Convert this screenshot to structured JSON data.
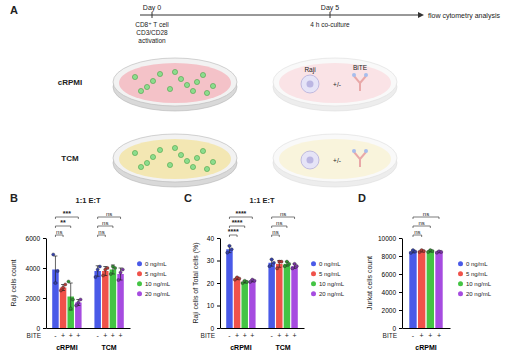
{
  "panel_a": {
    "letter": "A",
    "timeline": [
      "Day 0",
      "Day 5",
      "flow cytometry analysis"
    ],
    "day0_note": [
      "CD8⁺ T cell",
      "CD3/CD28",
      "activation"
    ],
    "day5_note": "4 h co-culture",
    "media": [
      "cRPMI",
      "TCM"
    ],
    "target": "Raji",
    "engager": "BiTE",
    "plus_minus": "+/-"
  },
  "chart_data": [
    {
      "panel": "B",
      "type": "bar",
      "title": "1:1 E:T",
      "y_label": "Raji cells count",
      "categories": [
        "cRPMI",
        "TCM"
      ],
      "ylim": [
        0,
        6000
      ],
      "yticks": [
        0,
        2000,
        4000,
        6000
      ],
      "legend": "right",
      "x_row_label": "BITE",
      "series": [
        {
          "name": "0 ng/mL",
          "color": "#4a5ae8",
          "x_row": "-",
          "values": [
            3900,
            3800
          ],
          "errors": [
            900,
            350
          ],
          "points": [
            [
              4900,
              3000,
              3800
            ],
            [
              3400,
              3900,
              4100
            ]
          ]
        },
        {
          "name": "5 ng/mL",
          "color": "#f0524a",
          "x_row": "+",
          "values": [
            2700,
            3800
          ],
          "errors": [
            200,
            300
          ],
          "points": [
            [
              2500,
              2700,
              2900
            ],
            [
              3500,
              3900,
              4000
            ]
          ]
        },
        {
          "name": "10 ng/mL",
          "color": "#44c444",
          "x_row": "+",
          "values": [
            2100,
            3900
          ],
          "errors": [
            900,
            300
          ],
          "points": [
            [
              3100,
              1300,
              1900
            ],
            [
              3600,
              4100,
              4000
            ]
          ]
        },
        {
          "name": "20 ng/mL",
          "color": "#a64ce0",
          "x_row": "+",
          "values": [
            1700,
            3600
          ],
          "errors": [
            200,
            400
          ],
          "points": [
            [
              1500,
              1700,
              1900
            ],
            [
              3200,
              3700,
              3900
            ]
          ]
        }
      ],
      "comparisons": [
        {
          "group": 0,
          "from": 0,
          "to": 1,
          "label": "ns"
        },
        {
          "group": 0,
          "from": 0,
          "to": 2,
          "label": "**"
        },
        {
          "group": 0,
          "from": 0,
          "to": 3,
          "label": "***"
        },
        {
          "group": 1,
          "from": 0,
          "to": 1,
          "label": "ns"
        },
        {
          "group": 1,
          "from": 0,
          "to": 2,
          "label": "ns"
        },
        {
          "group": 1,
          "from": 0,
          "to": 3,
          "label": "ns"
        }
      ]
    },
    {
      "panel": "C",
      "type": "bar",
      "title": "1:1 E:T",
      "y_label": "Raji cells of Total cells (%)",
      "categories": [
        "cRPMI",
        "TCM"
      ],
      "ylim": [
        0,
        40
      ],
      "yticks": [
        0,
        10,
        20,
        30,
        40
      ],
      "legend": "right",
      "x_row_label": "BITE",
      "series": [
        {
          "name": "0 ng/mL",
          "color": "#4a5ae8",
          "x_row": "-",
          "values": [
            35,
            29
          ],
          "errors": [
            1.5,
            1.5
          ],
          "points": [
            [
              33.5,
              36.5,
              35
            ],
            [
              27.5,
              30.5,
              29
            ]
          ]
        },
        {
          "name": "5 ng/mL",
          "color": "#f0524a",
          "x_row": "+",
          "values": [
            22,
            28.5
          ],
          "errors": [
            0.5,
            1.5
          ],
          "points": [
            [
              21.5,
              22.5,
              22
            ],
            [
              26.5,
              29.5,
              29.5
            ]
          ]
        },
        {
          "name": "10 ng/mL",
          "color": "#44c444",
          "x_row": "+",
          "values": [
            20.5,
            28.5
          ],
          "errors": [
            0.5,
            1
          ],
          "points": [
            [
              20,
              21,
              20.5
            ],
            [
              27.5,
              29.5,
              28.5
            ]
          ]
        },
        {
          "name": "20 ng/mL",
          "color": "#a64ce0",
          "x_row": "+",
          "values": [
            21,
            27.5
          ],
          "errors": [
            0.5,
            1
          ],
          "points": [
            [
              20.5,
              21.5,
              21
            ],
            [
              26.5,
              28.5,
              27.5
            ]
          ]
        }
      ],
      "comparisons": [
        {
          "group": 0,
          "from": 0,
          "to": 1,
          "label": "****"
        },
        {
          "group": 0,
          "from": 0,
          "to": 2,
          "label": "****"
        },
        {
          "group": 0,
          "from": 0,
          "to": 3,
          "label": "****"
        },
        {
          "group": 1,
          "from": 0,
          "to": 1,
          "label": "ns"
        },
        {
          "group": 1,
          "from": 0,
          "to": 2,
          "label": "ns"
        },
        {
          "group": 1,
          "from": 0,
          "to": 3,
          "label": "ns"
        }
      ]
    },
    {
      "panel": "D",
      "type": "bar",
      "y_label": "Jurkat cells count",
      "categories": [
        "cRPMI"
      ],
      "ylim": [
        0,
        10000
      ],
      "yticks": [
        0,
        2000,
        4000,
        6000,
        8000,
        10000
      ],
      "legend": "right",
      "x_row_label": "BITE",
      "series": [
        {
          "name": "0 ng/mL",
          "color": "#4a5ae8",
          "x_row": "-",
          "values": [
            8500
          ],
          "errors": [
            150
          ],
          "points": [
            [
              8350,
              8650,
              8500
            ]
          ]
        },
        {
          "name": "5 ng/mL",
          "color": "#f0524a",
          "x_row": "+",
          "values": [
            8550
          ],
          "errors": [
            100
          ],
          "points": [
            [
              8450,
              8650,
              8550
            ]
          ]
        },
        {
          "name": "10 ng/mL",
          "color": "#44c444",
          "x_row": "+",
          "values": [
            8550
          ],
          "errors": [
            100
          ],
          "points": [
            [
              8450,
              8650,
              8550
            ]
          ]
        },
        {
          "name": "20 ng/mL",
          "color": "#a64ce0",
          "x_row": "+",
          "values": [
            8450
          ],
          "errors": [
            80
          ],
          "points": [
            [
              8370,
              8530,
              8450
            ]
          ]
        }
      ],
      "comparisons": [
        {
          "group": 0,
          "from": 0,
          "to": 1,
          "label": "ns"
        },
        {
          "group": 0,
          "from": 0,
          "to": 2,
          "label": "ns"
        },
        {
          "group": 0,
          "from": 0,
          "to": 3,
          "label": "ns"
        }
      ]
    }
  ]
}
